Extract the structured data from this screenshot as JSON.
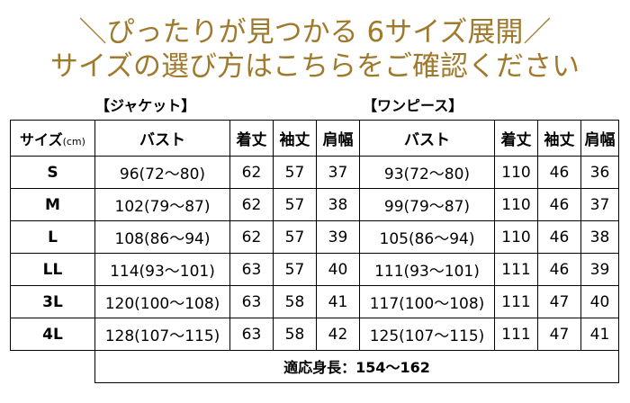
{
  "headline": {
    "line1": "＼ぴったりが見つかる 6サイズ展開／",
    "line2": "サイズの選び方はこちらをご確認ください"
  },
  "sections": {
    "jacket": "【ジャケット】",
    "onepiece": "【ワンピース】"
  },
  "columns": {
    "size": "サイズ",
    "size_unit": "(cm)",
    "bust": "バスト",
    "length": "着丈",
    "sleeve": "袖丈",
    "shoulder": "肩幅"
  },
  "rows": [
    {
      "size": "S",
      "jacket": {
        "bust": "96(72～80)",
        "length": "62",
        "sleeve": "57",
        "shoulder": "37"
      },
      "onepiece": {
        "bust": "93(72～80)",
        "length": "110",
        "sleeve": "46",
        "shoulder": "36"
      }
    },
    {
      "size": "M",
      "jacket": {
        "bust": "102(79～87)",
        "length": "62",
        "sleeve": "57",
        "shoulder": "38"
      },
      "onepiece": {
        "bust": "99(79～87)",
        "length": "110",
        "sleeve": "46",
        "shoulder": "37"
      }
    },
    {
      "size": "L",
      "jacket": {
        "bust": "108(86～94)",
        "length": "62",
        "sleeve": "57",
        "shoulder": "39"
      },
      "onepiece": {
        "bust": "105(86～94)",
        "length": "110",
        "sleeve": "46",
        "shoulder": "38"
      }
    },
    {
      "size": "LL",
      "jacket": {
        "bust": "114(93～101)",
        "length": "63",
        "sleeve": "57",
        "shoulder": "40"
      },
      "onepiece": {
        "bust": "111(93～101)",
        "length": "111",
        "sleeve": "46",
        "shoulder": "39"
      }
    },
    {
      "size": "3L",
      "jacket": {
        "bust": "120(100～108)",
        "length": "63",
        "sleeve": "58",
        "shoulder": "41"
      },
      "onepiece": {
        "bust": "117(100～108)",
        "length": "111",
        "sleeve": "47",
        "shoulder": "40"
      }
    },
    {
      "size": "4L",
      "jacket": {
        "bust": "128(107～115)",
        "length": "63",
        "sleeve": "58",
        "shoulder": "42"
      },
      "onepiece": {
        "bust": "125(107～115)",
        "length": "111",
        "sleeve": "47",
        "shoulder": "41"
      }
    }
  ],
  "footer": "適応身長：154～162",
  "colors": {
    "headline": "#a07a2c",
    "border": "#000000"
  }
}
